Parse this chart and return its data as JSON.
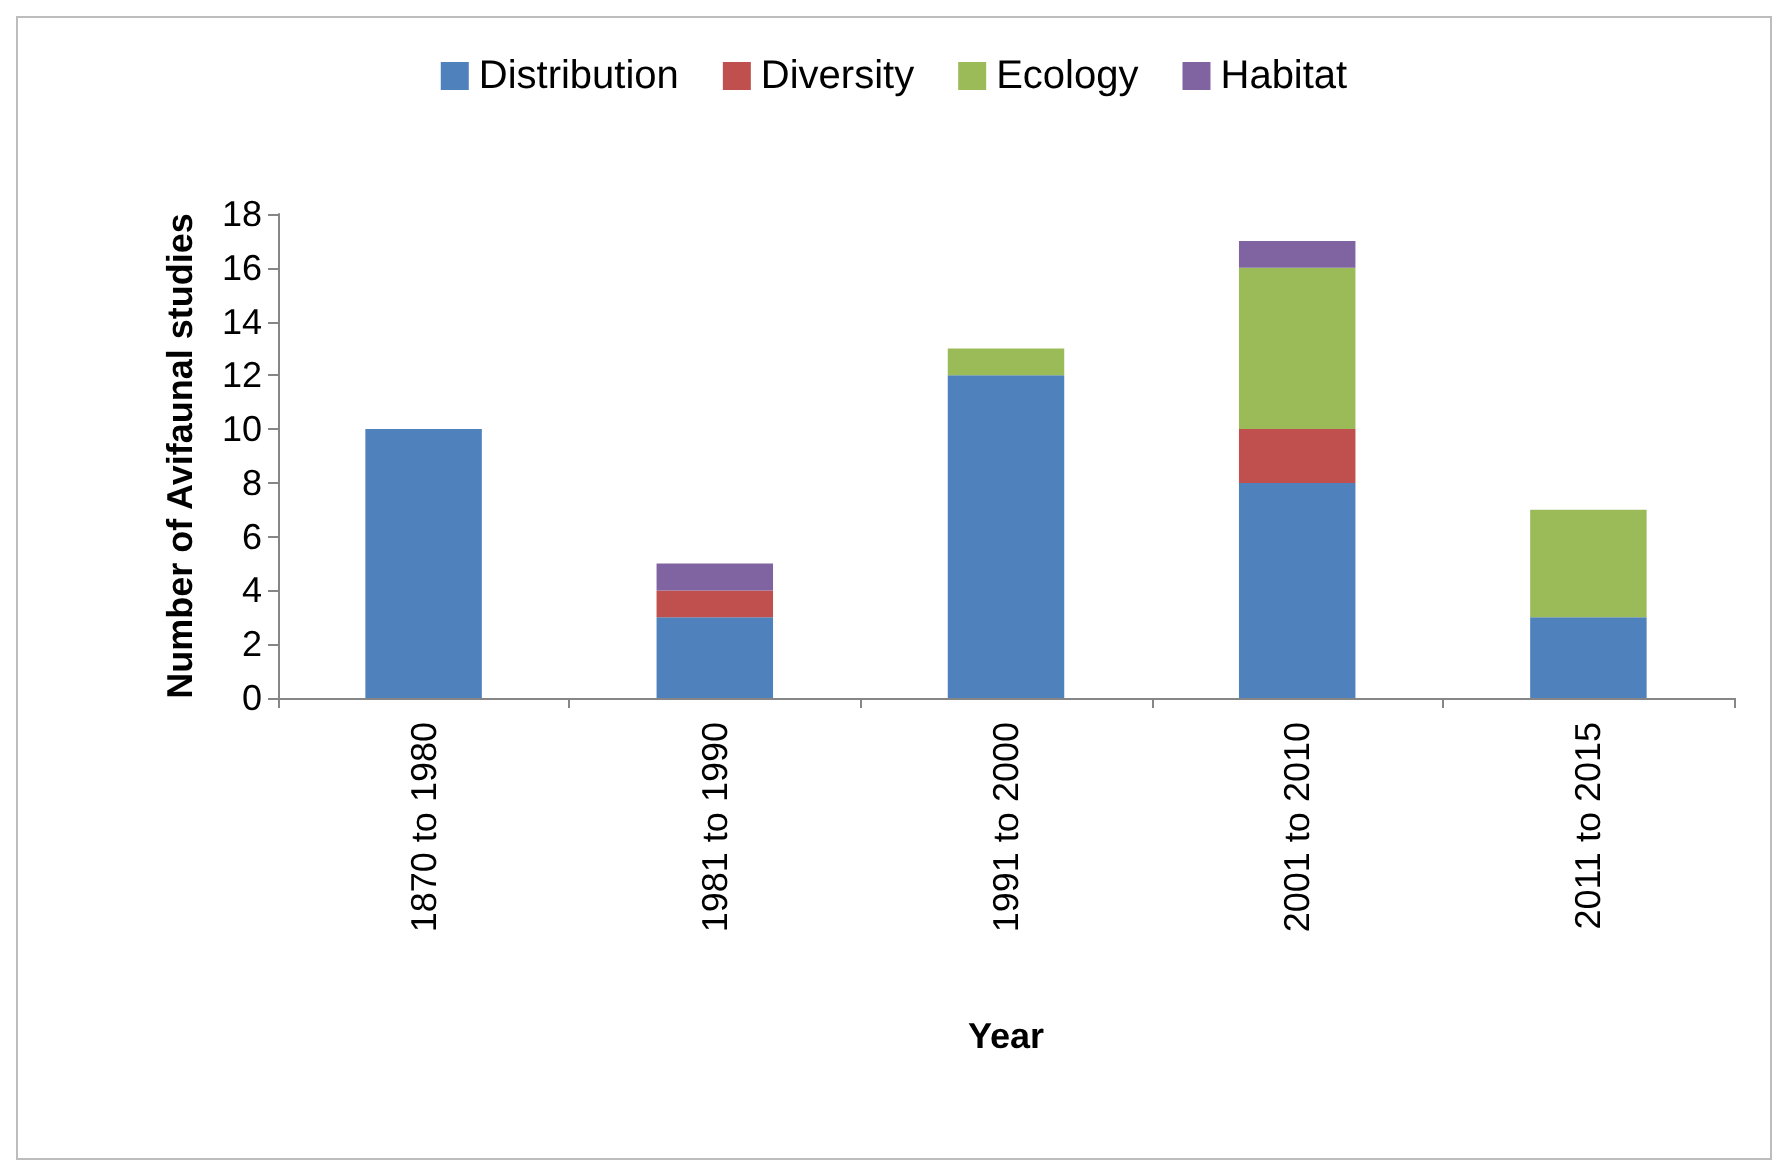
{
  "chart_data": {
    "type": "bar",
    "stacked": true,
    "xlabel": "Year",
    "ylabel": "Number of Avifaunal studies",
    "categories": [
      "1870 to 1980",
      "1981 to 1990",
      "1991 to 2000",
      "2001 to 2010",
      "2011 to 2015"
    ],
    "series": [
      {
        "name": "Distribution",
        "color": "#4f81bd",
        "values": [
          10,
          3,
          12,
          8,
          3
        ]
      },
      {
        "name": "Diversity",
        "color": "#c0504d",
        "values": [
          0,
          1,
          0,
          2,
          0
        ]
      },
      {
        "name": "Ecology",
        "color": "#9bbb59",
        "values": [
          0,
          0,
          1,
          6,
          4
        ]
      },
      {
        "name": "Habitat",
        "color": "#8064a2",
        "values": [
          0,
          1,
          0,
          1,
          0
        ]
      }
    ],
    "ylim": [
      0,
      18
    ],
    "yticks": [
      0,
      2,
      4,
      6,
      8,
      10,
      12,
      14,
      16,
      18
    ],
    "grid": false,
    "legend": "top"
  }
}
